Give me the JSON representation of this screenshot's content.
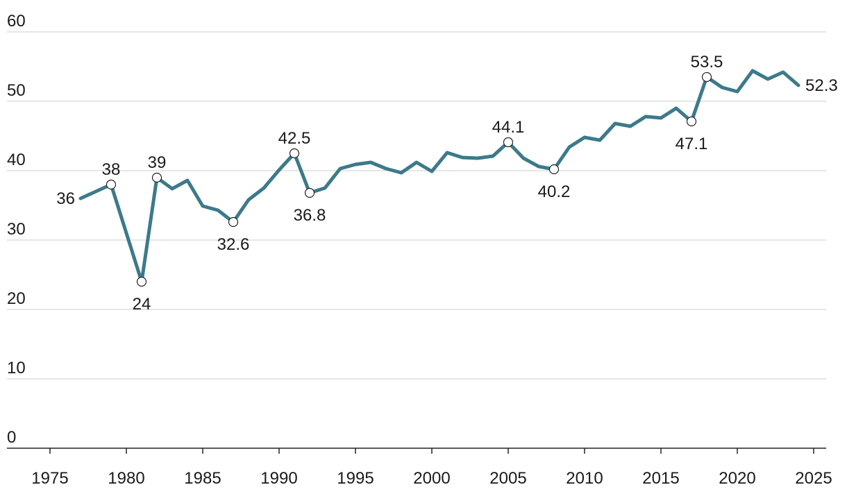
{
  "chart_data": {
    "type": "line",
    "title": "",
    "xlabel": "",
    "ylabel": "",
    "xlim": [
      1973,
      2026
    ],
    "ylim": [
      0,
      60
    ],
    "grid": true,
    "x_ticks": [
      1975,
      1980,
      1985,
      1990,
      1995,
      2000,
      2005,
      2010,
      2015,
      2020,
      2025
    ],
    "y_ticks": [
      0,
      10,
      20,
      30,
      40,
      50,
      60
    ],
    "colors": {
      "line": "#3c7a8a",
      "grid": "#dddddd",
      "axis": "#222222",
      "marker": "#222222"
    },
    "series": [
      {
        "x": [
          1977,
          1978,
          1979,
          1980,
          1981,
          1982,
          1983,
          1984,
          1985,
          1986,
          1987,
          1988,
          1989,
          1990,
          1991,
          1992,
          1993,
          1994,
          1995,
          1996,
          1997,
          1998,
          1999,
          2000,
          2001,
          2002,
          2003,
          2004,
          2005,
          2006,
          2007,
          2008,
          2009,
          2010,
          2011,
          2012,
          2013,
          2014,
          2015,
          2016,
          2017,
          2018,
          2019,
          2020,
          2021,
          2022,
          2023,
          2024
        ],
        "values": [
          36,
          37,
          38,
          31,
          24,
          39,
          37.4,
          38.6,
          34.9,
          34.3,
          32.6,
          35.8,
          37.5,
          40.1,
          42.5,
          36.8,
          37.5,
          40.3,
          40.9,
          41.2,
          40.3,
          39.7,
          41.2,
          39.9,
          42.6,
          41.9,
          41.8,
          42.1,
          44.1,
          41.8,
          40.6,
          40.2,
          43.4,
          44.8,
          44.4,
          46.8,
          46.4,
          47.8,
          47.6,
          49.0,
          47.1,
          53.5,
          52.0,
          51.4,
          54.4,
          53.2,
          54.2,
          52.3
        ]
      }
    ],
    "labels": [
      {
        "x": 1977,
        "y": 36,
        "text": "36",
        "pos": "left",
        "marker": false
      },
      {
        "x": 1979,
        "y": 38,
        "text": "38",
        "pos": "above",
        "marker": true
      },
      {
        "x": 1981,
        "y": 24,
        "text": "24",
        "pos": "below",
        "marker": true
      },
      {
        "x": 1982,
        "y": 39,
        "text": "39",
        "pos": "above",
        "marker": true
      },
      {
        "x": 1987,
        "y": 32.6,
        "text": "32.6",
        "pos": "below",
        "marker": true
      },
      {
        "x": 1991,
        "y": 42.5,
        "text": "42.5",
        "pos": "above",
        "marker": true
      },
      {
        "x": 1992,
        "y": 36.8,
        "text": "36.8",
        "pos": "below",
        "marker": true
      },
      {
        "x": 2005,
        "y": 44.1,
        "text": "44.1",
        "pos": "above",
        "marker": true
      },
      {
        "x": 2008,
        "y": 40.2,
        "text": "40.2",
        "pos": "below",
        "marker": true
      },
      {
        "x": 2017,
        "y": 47.1,
        "text": "47.1",
        "pos": "below",
        "marker": true
      },
      {
        "x": 2018,
        "y": 53.5,
        "text": "53.5",
        "pos": "above",
        "marker": true
      },
      {
        "x": 2024,
        "y": 52.3,
        "text": "52.3",
        "pos": "right",
        "marker": false
      }
    ]
  }
}
